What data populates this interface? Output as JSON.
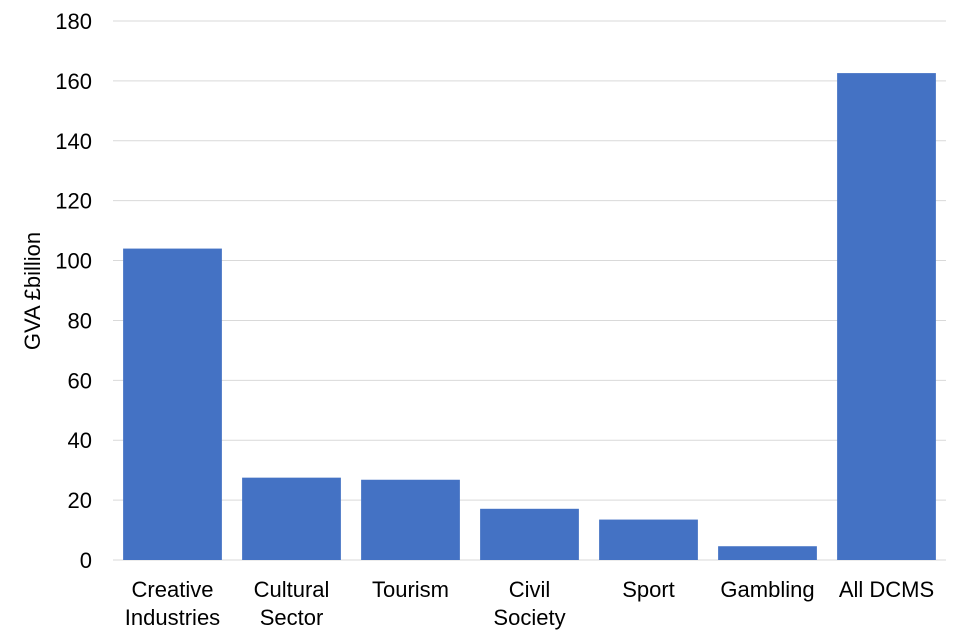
{
  "chart_data": {
    "type": "bar",
    "categories": [
      [
        "Creative",
        "Industries"
      ],
      [
        "Cultural",
        "Sector"
      ],
      [
        "Tourism"
      ],
      [
        "Civil",
        "Society"
      ],
      [
        "Sport"
      ],
      [
        "Gambling"
      ],
      [
        "All DCMS"
      ]
    ],
    "series": [
      {
        "values": [
          104,
          27.5,
          26.8,
          17.1,
          13.5,
          4.6,
          162.6
        ]
      }
    ],
    "title": "",
    "xlabel": "",
    "ylabel": "GVA £billion",
    "ylim": [
      0,
      180
    ],
    "yticks": [
      0,
      20,
      40,
      60,
      80,
      100,
      120,
      140,
      160,
      180
    ],
    "grid": true,
    "bar_color": "#4472C4",
    "grid_color": "#D9D9D9"
  }
}
